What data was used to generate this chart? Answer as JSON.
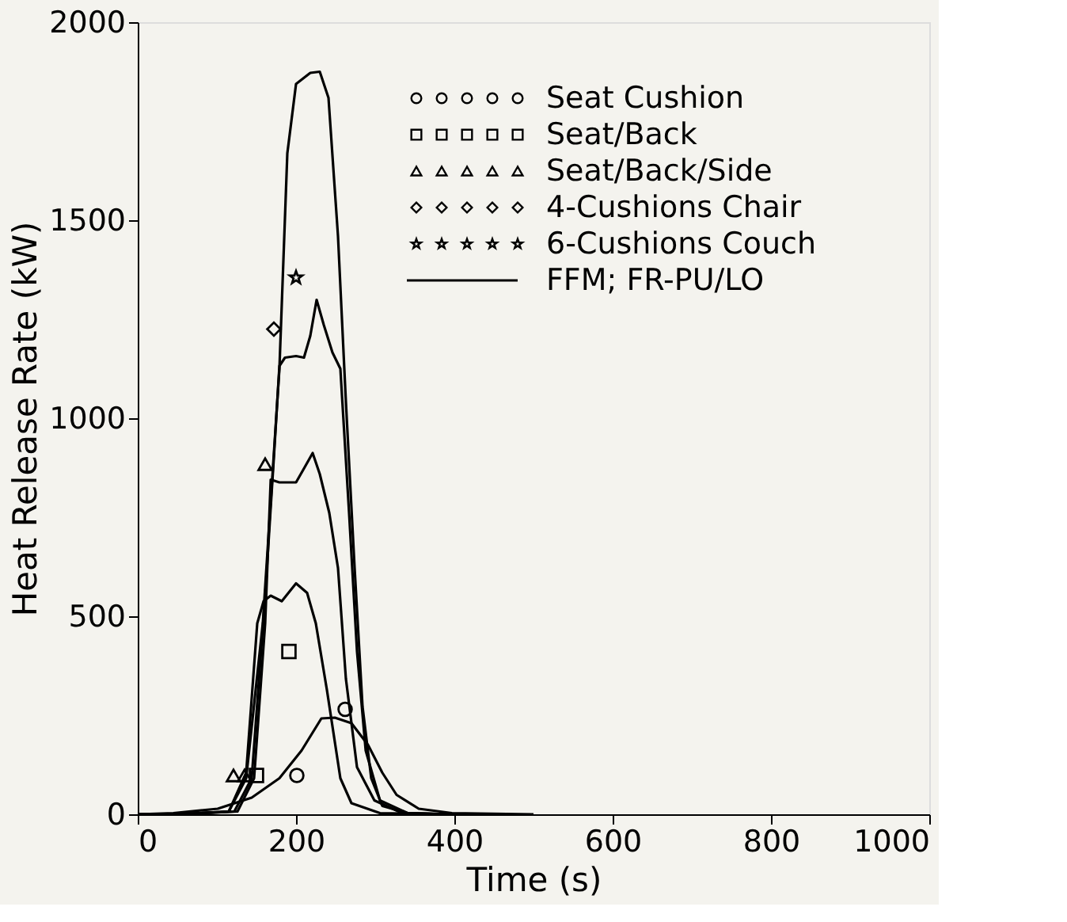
{
  "chart_data": {
    "type": "line",
    "xlabel": "Time (s)",
    "ylabel": "Heat Release Rate (kW)",
    "xlim": [
      0,
      1000
    ],
    "ylim": [
      0,
      2000
    ],
    "xticks": [
      0,
      200,
      400,
      600,
      800,
      1000
    ],
    "yticks": [
      0,
      500,
      1000,
      1500,
      2000
    ],
    "grid": false,
    "legend": "top right",
    "series": [
      {
        "name": "Seat Cushion",
        "type": "scatter",
        "marker": "circle",
        "color": "#000000",
        "x": [
          201,
          262
        ],
        "values": [
          98,
          265
        ]
      },
      {
        "name": "Seat/Back",
        "type": "scatter",
        "marker": "square",
        "color": "#000000",
        "x": [
          150,
          191
        ],
        "values": [
          98,
          411
        ]
      },
      {
        "name": "Seat/Back/Side",
        "type": "scatter",
        "marker": "triangle",
        "color": "#000000",
        "x": [
          121,
          135,
          161
        ],
        "values": [
          98,
          98,
          884
        ]
      },
      {
        "name": "4-Cushions Chair",
        "type": "scatter",
        "marker": "diamond",
        "color": "#000000",
        "x": [
          172
        ],
        "values": [
          1225
        ]
      },
      {
        "name": "6-Cushions Couch",
        "type": "scatter",
        "marker": "star",
        "color": "#000000",
        "x": [
          200
        ],
        "values": [
          1355
        ]
      },
      {
        "name": "FFM; FR-PU/LO",
        "line_style": "solid",
        "color": "#000000",
        "x": [
          0,
          45,
          101,
          144,
          179,
          207,
          232,
          249,
          270,
          291,
          309,
          327,
          355,
          397,
          500
        ],
        "values": [
          0,
          3,
          14,
          42,
          91,
          161,
          242,
          244,
          230,
          175,
          105,
          49,
          14,
          3,
          0
        ]
      },
      {
        "line_style": "solid",
        "color": "#000000",
        "x": [
          0,
          60,
          115,
          137,
          151,
          159,
          168,
          182,
          200,
          214,
          225,
          239,
          256,
          270,
          306,
          400
        ],
        "values": [
          0,
          1,
          7,
          105,
          482,
          538,
          552,
          538,
          583,
          559,
          482,
          314,
          91,
          28,
          3,
          0
        ]
      },
      {
        "line_style": "solid",
        "color": "#000000",
        "x": [
          0,
          60,
          126,
          147,
          161,
          168,
          179,
          200,
          210,
          221,
          230,
          242,
          253,
          263,
          277,
          299,
          334,
          400
        ],
        "values": [
          0,
          1,
          7,
          91,
          482,
          845,
          838,
          838,
          873,
          912,
          859,
          761,
          622,
          342,
          119,
          35,
          3,
          0
        ]
      },
      {
        "line_style": "solid",
        "color": "#000000",
        "x": [
          0,
          60,
          122,
          144,
          161,
          172,
          179,
          186,
          200,
          210,
          218,
          226,
          235,
          246,
          256,
          267,
          277,
          288,
          306,
          341,
          400
        ],
        "values": [
          0,
          1,
          7,
          91,
          552,
          901,
          1132,
          1153,
          1157,
          1153,
          1208,
          1299,
          1236,
          1166,
          1125,
          761,
          412,
          161,
          35,
          3,
          0
        ]
      },
      {
        "line_style": "solid",
        "color": "#000000",
        "x": [
          0,
          60,
          115,
          137,
          158,
          179,
          189,
          200,
          218,
          230,
          241,
          253,
          263,
          274,
          284,
          295,
          309,
          341,
          400
        ],
        "values": [
          0,
          1,
          7,
          91,
          482,
          1125,
          1669,
          1844,
          1872,
          1875,
          1809,
          1460,
          1041,
          622,
          272,
          91,
          21,
          3,
          0
        ]
      }
    ]
  }
}
